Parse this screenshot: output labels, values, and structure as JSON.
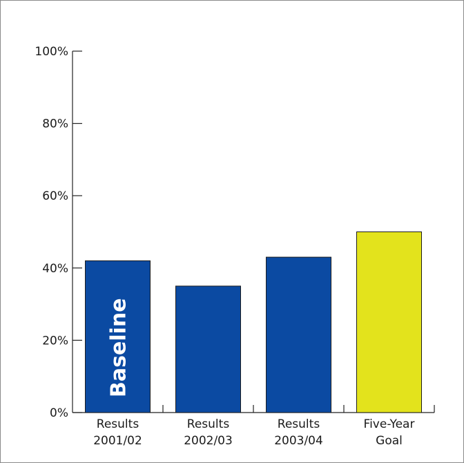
{
  "chart_data": {
    "type": "bar",
    "categories": [
      [
        "Results",
        "2001/02"
      ],
      [
        "Results",
        "2002/03"
      ],
      [
        "Results",
        "2003/04"
      ],
      [
        "Five-Year",
        "Goal"
      ]
    ],
    "values": [
      42,
      35,
      43,
      50
    ],
    "value_unit": "%",
    "bar_colors": [
      "#0b4aa2",
      "#0b4aa2",
      "#0b4aa2",
      "#e3e31c"
    ],
    "bar_annotations": [
      "Baseline",
      "",
      "",
      ""
    ],
    "ylim": [
      0,
      100
    ],
    "y_ticks": [
      0,
      20,
      40,
      60,
      80,
      100
    ],
    "y_tick_labels": [
      "0%",
      "20%",
      "40%",
      "60%",
      "80%",
      "100%"
    ],
    "title": "",
    "xlabel": "",
    "ylabel": "",
    "grid": false,
    "legend": "none"
  }
}
